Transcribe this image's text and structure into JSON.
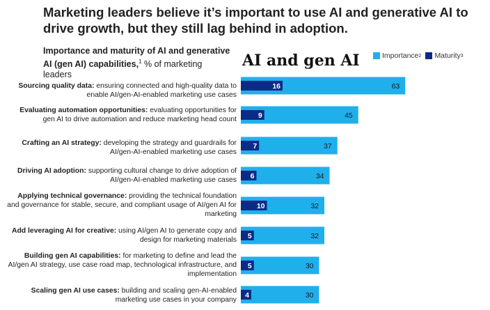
{
  "headline": "Marketing leaders believe it’s important to use AI and generative AI to drive growth, but they still lag behind in adoption.",
  "subhead": {
    "bold": "Importance and maturity of AI and generative AI (gen AI) capabilities,",
    "footnote": "1",
    "rest": " % of marketing leaders"
  },
  "panel_title": "AI and gen AI",
  "legend": {
    "importance": "Importance",
    "importance_sup": "2",
    "maturity": "Maturity",
    "maturity_sup": "3"
  },
  "colors": {
    "importance": "#1fb0ec",
    "maturity": "#0b2b86",
    "text_light": "#ffffff",
    "text_dark": "#1a1a1a"
  },
  "rows": [
    {
      "bold": "Sourcing quality data:",
      "desc": " ensuring connected and high-quality data to enable AI/gen-AI-enabled marketing use cases"
    },
    {
      "bold": "Evaluating automation opportunities:",
      "desc": " evaluating opportunities for gen AI to drive automation and reduce marketing head count"
    },
    {
      "bold": "Crafting an AI strategy:",
      "desc": " developing the strategy and guardrails for AI/gen-AI-enabled marketing use cases"
    },
    {
      "bold": "Driving AI adoption:",
      "desc": " supporting cultural change to drive adoption of AI/gen-AI-enabled marketing use cases"
    },
    {
      "bold": "Applying technical governance:",
      "desc": " providing the technical foundation and governance for stable, secure, and compliant usage of AI/gen AI for marketing"
    },
    {
      "bold": "Add leveraging AI for creative:",
      "desc": " using AI/gen AI to generate copy and design for marketing materials"
    },
    {
      "bold": "Building gen AI capabilities:",
      "desc": " for marketing to define and lead the AI/gen AI strategy, use case road map, technological infrastructure, and implementation"
    },
    {
      "bold": "Scaling gen AI use cases:",
      "desc": " building and scaling gen-AI-enabled marketing use cases in your company"
    }
  ],
  "chart_data": {
    "type": "bar",
    "orientation": "horizontal",
    "title": "AI and gen AI",
    "categories": [
      "Sourcing quality data",
      "Evaluating automation opportunities",
      "Crafting an AI strategy",
      "Driving AI adoption",
      "Applying technical governance",
      "Add leveraging AI for creative",
      "Building gen AI capabilities",
      "Scaling gen AI use cases"
    ],
    "series": [
      {
        "name": "Importance",
        "values": [
          63,
          45,
          37,
          34,
          32,
          32,
          30,
          30
        ]
      },
      {
        "name": "Maturity",
        "values": [
          16,
          9,
          7,
          6,
          10,
          5,
          5,
          4
        ]
      }
    ],
    "unit": "% of marketing leaders",
    "xlim": [
      0,
      100
    ],
    "legend_position": "top-right"
  }
}
